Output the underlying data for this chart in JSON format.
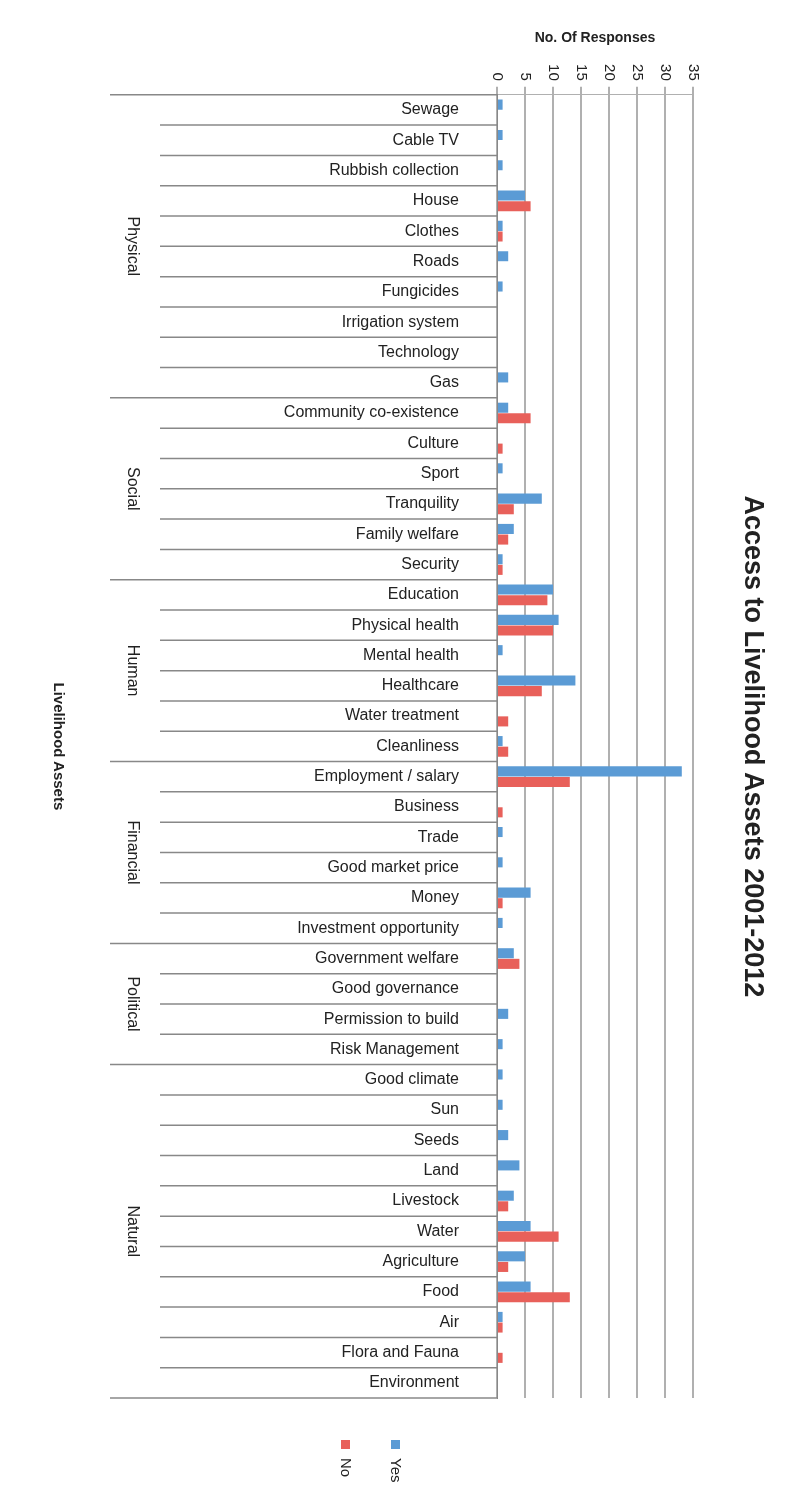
{
  "chart_data": {
    "type": "bar",
    "orientation": "horizontal",
    "title": "Access to Livelihood Assets 2001-2012",
    "xlabel": "No. Of Responses",
    "categories": [
      "Sewage",
      "Cable TV",
      "Rubbish collection",
      "House",
      "Clothes",
      "Roads",
      "Fungicides",
      "Irrigation system",
      "Technology",
      "Gas",
      "Community co-existence",
      "Culture",
      "Sport",
      "Tranquility",
      "Family welfare",
      "Security",
      "Education",
      "Physical health",
      "Mental health",
      "Healthcare",
      "Water treatment",
      "Cleanliness",
      "Employment / salary",
      "Business",
      "Trade",
      "Good market price",
      "Money",
      "Investment opportunity",
      "Government welfare",
      "Good governance",
      "Permission to build",
      "Risk Management",
      "Good climate",
      "Sun",
      "Seeds",
      "Land",
      "Livestock",
      "Water",
      "Agriculture",
      "Food",
      "Air",
      "Flora and Fauna",
      "Environment"
    ],
    "series": [
      {
        "name": "Yes",
        "color": "#5b9bd5",
        "values": [
          1,
          1,
          1,
          5,
          1,
          2,
          1,
          0,
          0,
          2,
          2,
          0,
          1,
          8,
          3,
          1,
          10,
          11,
          1,
          14,
          0,
          1,
          33,
          0,
          1,
          1,
          6,
          1,
          3,
          0,
          2,
          1,
          1,
          1,
          2,
          4,
          3,
          6,
          5,
          6,
          1,
          0,
          0
        ]
      },
      {
        "name": "No",
        "color": "#e8605a",
        "values": [
          0,
          0,
          0,
          6,
          1,
          0,
          0,
          0,
          0,
          0,
          6,
          1,
          0,
          3,
          2,
          1,
          9,
          10,
          0,
          8,
          2,
          2,
          13,
          1,
          0,
          0,
          1,
          0,
          4,
          0,
          0,
          0,
          0,
          0,
          0,
          0,
          2,
          11,
          2,
          13,
          1,
          1,
          0
        ]
      }
    ],
    "xlim": [
      0,
      35
    ],
    "xticks": [
      0,
      5,
      10,
      15,
      20,
      25,
      30,
      35
    ],
    "grid": "x",
    "legend": "bottom",
    "annotations": [
      "Physical",
      "Social",
      "Human",
      "Financial",
      "Political",
      "Natural",
      "Livelihood Assets"
    ]
  }
}
